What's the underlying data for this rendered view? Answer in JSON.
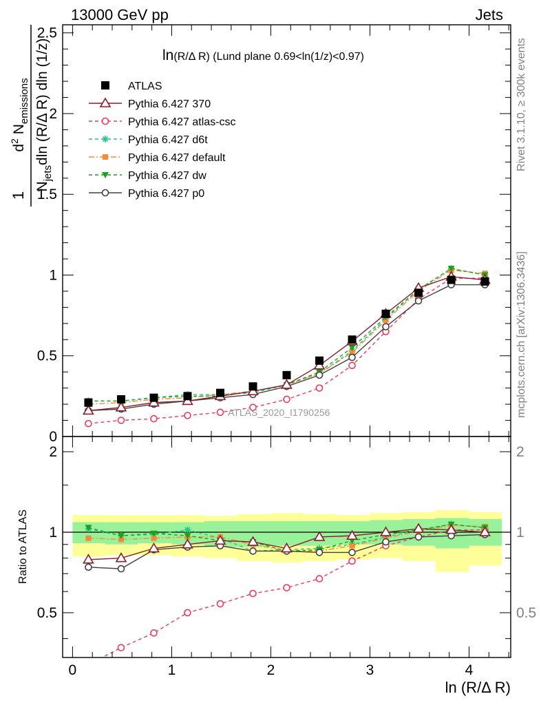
{
  "header": {
    "left": "13000 GeV pp",
    "right": "Jets"
  },
  "plot_title": {
    "main": "ln",
    "sub": "(R/Δ R)",
    "rest": " (Lund plane 0.69<ln(1/z)<0.97)"
  },
  "axes": {
    "ylabel_main_frac_num": "1",
    "ylabel_main_frac_den_parts": [
      "N",
      "jets",
      "dln (R/Δ R) dln (1/z)"
    ],
    "ylabel_main_num_parts": [
      "d",
      "2",
      " N",
      "emissions"
    ],
    "ylabel_ratio": "Ratio to ATLAS",
    "xlabel": "ln (R/Δ R)"
  },
  "side_labels": {
    "rivet": "Rivet 3.1.10, ≥ 300k events",
    "mcplots": "mcplots.cern.ch [arXiv:1306.3436]"
  },
  "watermark": "ATLAS_2020_I1790256",
  "colors": {
    "atlas": "#000000",
    "p370": "#8b1a2b",
    "atlascsc": "#ee3a5c",
    "d6t": "#22c58a",
    "default": "#f58a3a",
    "dw": "#1aa31a",
    "p0": "#404040",
    "band_outer": "#ffff99",
    "band_inner": "#99f299"
  },
  "chart_data": [
    {
      "type": "line",
      "panel": "main",
      "x": [
        0.16,
        0.49,
        0.82,
        1.16,
        1.49,
        1.82,
        2.16,
        2.49,
        2.82,
        3.16,
        3.49,
        3.82,
        4.16
      ],
      "xlim": [
        -0.1,
        4.42
      ],
      "ylim": [
        0,
        2.55
      ],
      "yticks": [
        0,
        0.5,
        1,
        1.5,
        2,
        2.5
      ],
      "ytick_labels": [
        "0",
        "0.5",
        "1",
        "1.5",
        "2",
        "2.5"
      ],
      "xticks": [
        0,
        1,
        2,
        3,
        4
      ],
      "series": [
        {
          "name": "ATLAS",
          "key": "atlas",
          "values": [
            0.21,
            0.23,
            0.24,
            0.25,
            0.27,
            0.31,
            0.38,
            0.47,
            0.6,
            0.76,
            0.89,
            0.97,
            0.96
          ]
        },
        {
          "name": "Pythia 6.427 370",
          "key": "p370",
          "values": [
            0.16,
            0.18,
            0.21,
            0.22,
            0.25,
            0.28,
            0.32,
            0.44,
            0.59,
            0.76,
            0.92,
            0.99,
            0.97
          ]
        },
        {
          "name": "Pythia 6.427 atlas-csc",
          "key": "atlascsc",
          "values": [
            0.08,
            0.1,
            0.11,
            0.13,
            0.15,
            0.18,
            0.23,
            0.3,
            0.44,
            0.65,
            0.85,
            0.98,
            0.98
          ]
        },
        {
          "name": "Pythia 6.427 d6t",
          "key": "d6t",
          "values": [
            0.22,
            0.22,
            0.24,
            0.26,
            0.26,
            0.27,
            0.32,
            0.39,
            0.53,
            0.73,
            0.91,
            1.04,
            1.0
          ]
        },
        {
          "name": "Pythia 6.427 default",
          "key": "default",
          "values": [
            0.2,
            0.21,
            0.23,
            0.24,
            0.26,
            0.28,
            0.32,
            0.39,
            0.52,
            0.72,
            0.9,
            1.03,
            1.01
          ]
        },
        {
          "name": "Pythia 6.427 dw",
          "key": "dw",
          "values": [
            0.22,
            0.22,
            0.24,
            0.25,
            0.25,
            0.28,
            0.32,
            0.4,
            0.55,
            0.74,
            0.91,
            1.04,
            1.0
          ]
        },
        {
          "name": "Pythia 6.427 p0",
          "key": "p0",
          "values": [
            0.16,
            0.17,
            0.2,
            0.22,
            0.24,
            0.26,
            0.31,
            0.38,
            0.49,
            0.68,
            0.84,
            0.94,
            0.94
          ]
        }
      ]
    },
    {
      "type": "line",
      "panel": "ratio",
      "x": [
        0.16,
        0.49,
        0.82,
        1.16,
        1.49,
        1.82,
        2.16,
        2.49,
        2.82,
        3.16,
        3.49,
        3.82,
        4.16
      ],
      "xlim": [
        -0.1,
        4.42
      ],
      "ylim": [
        0.34,
        2.28
      ],
      "yticks": [
        0.5,
        1,
        2
      ],
      "ytick_labels": [
        "0.5",
        "1",
        "2"
      ],
      "xticks": [
        0,
        1,
        2,
        3,
        4
      ],
      "xtick_labels": [
        "0",
        "1",
        "2",
        "3",
        "4"
      ],
      "band_edges": [
        0.0,
        0.33,
        0.66,
        1.0,
        1.33,
        1.66,
        2.0,
        2.33,
        2.66,
        3.0,
        3.33,
        3.66,
        4.0,
        4.33
      ],
      "band_outer_lo": [
        0.81,
        0.82,
        0.82,
        0.81,
        0.8,
        0.78,
        0.77,
        0.78,
        0.79,
        0.8,
        0.78,
        0.71,
        0.75
      ],
      "band_outer_hi": [
        1.16,
        1.16,
        1.16,
        1.16,
        1.15,
        1.17,
        1.18,
        1.17,
        1.16,
        1.18,
        1.19,
        1.21,
        1.19
      ],
      "band_inner_lo": [
        0.91,
        0.9,
        0.91,
        0.9,
        0.88,
        0.88,
        0.89,
        0.89,
        0.9,
        0.9,
        0.89,
        0.87,
        0.89
      ],
      "band_inner_hi": [
        1.09,
        1.09,
        1.09,
        1.09,
        1.1,
        1.1,
        1.1,
        1.1,
        1.1,
        1.11,
        1.12,
        1.13,
        1.12
      ],
      "series": [
        {
          "name": "Pythia 6.427 370",
          "key": "p370",
          "values": [
            0.79,
            0.8,
            0.87,
            0.9,
            0.93,
            0.92,
            0.87,
            0.96,
            0.97,
            1.0,
            1.03,
            1.02,
            1.0
          ]
        },
        {
          "name": "Pythia 6.427 atlas-csc",
          "key": "atlascsc",
          "values": [
            0.32,
            0.37,
            0.42,
            0.5,
            0.54,
            0.59,
            0.62,
            0.67,
            0.78,
            0.89,
            0.96,
            1.02,
            1.02
          ]
        },
        {
          "name": "Pythia 6.427 d6t",
          "key": "d6t",
          "values": [
            1.03,
            0.97,
            0.98,
            1.02,
            0.95,
            0.85,
            0.86,
            0.87,
            0.9,
            0.96,
            1.02,
            1.07,
            1.04
          ]
        },
        {
          "name": "Pythia 6.427 default",
          "key": "default",
          "values": [
            0.95,
            0.94,
            0.95,
            0.96,
            0.96,
            0.9,
            0.85,
            0.85,
            0.89,
            0.95,
            1.01,
            1.06,
            1.05
          ]
        },
        {
          "name": "Pythia 6.427 dw",
          "key": "dw",
          "values": [
            1.04,
            0.97,
            0.99,
            0.97,
            0.93,
            0.92,
            0.85,
            0.86,
            0.93,
            0.98,
            1.02,
            1.07,
            1.04
          ]
        },
        {
          "name": "Pythia 6.427 p0",
          "key": "p0",
          "values": [
            0.74,
            0.73,
            0.86,
            0.88,
            0.89,
            0.85,
            0.85,
            0.84,
            0.84,
            0.92,
            0.96,
            0.97,
            0.98
          ]
        }
      ]
    }
  ]
}
